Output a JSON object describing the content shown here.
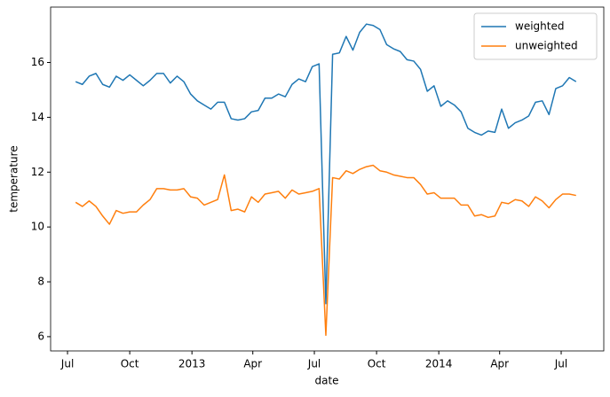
{
  "chart_data": {
    "type": "line",
    "xlabel": "date",
    "ylabel": "temperature",
    "x": [
      "2012-07-13",
      "2012-07-23",
      "2012-08-02",
      "2012-08-12",
      "2012-08-22",
      "2012-09-01",
      "2012-09-11",
      "2012-09-21",
      "2012-10-01",
      "2012-10-11",
      "2012-10-21",
      "2012-10-31",
      "2012-11-10",
      "2012-11-20",
      "2012-11-30",
      "2012-12-10",
      "2012-12-20",
      "2012-12-30",
      "2013-01-09",
      "2013-01-19",
      "2013-01-29",
      "2013-02-08",
      "2013-02-18",
      "2013-02-28",
      "2013-03-10",
      "2013-03-20",
      "2013-03-30",
      "2013-04-09",
      "2013-04-19",
      "2013-04-29",
      "2013-05-09",
      "2013-05-19",
      "2013-05-29",
      "2013-06-08",
      "2013-06-18",
      "2013-06-28",
      "2013-07-08",
      "2013-07-18",
      "2013-07-28",
      "2013-08-07",
      "2013-08-17",
      "2013-08-27",
      "2013-09-06",
      "2013-09-16",
      "2013-09-26",
      "2013-10-06",
      "2013-10-16",
      "2013-10-26",
      "2013-11-05",
      "2013-11-15",
      "2013-11-25",
      "2013-12-05",
      "2013-12-15",
      "2013-12-25",
      "2014-01-04",
      "2014-01-14",
      "2014-01-24",
      "2014-02-03",
      "2014-02-13",
      "2014-02-23",
      "2014-03-05",
      "2014-03-15",
      "2014-03-25",
      "2014-04-04",
      "2014-04-14",
      "2014-04-24",
      "2014-05-04",
      "2014-05-14",
      "2014-05-24",
      "2014-06-03",
      "2014-06-13",
      "2014-06-23",
      "2014-07-03",
      "2014-07-13",
      "2014-07-23"
    ],
    "series": [
      {
        "name": "weighted",
        "color": "#1f77b4",
        "values": [
          15.3,
          15.2,
          15.5,
          15.6,
          15.2,
          15.1,
          15.5,
          15.35,
          15.55,
          15.35,
          15.15,
          15.35,
          15.6,
          15.6,
          15.25,
          15.5,
          15.3,
          14.85,
          14.6,
          14.45,
          14.3,
          14.55,
          14.55,
          13.95,
          13.9,
          13.95,
          14.2,
          14.25,
          14.7,
          14.7,
          14.85,
          14.75,
          15.2,
          15.4,
          15.3,
          15.85,
          15.95,
          7.2,
          16.3,
          16.35,
          16.95,
          16.45,
          17.1,
          17.4,
          17.35,
          17.2,
          16.65,
          16.5,
          16.4,
          16.1,
          16.05,
          15.75,
          14.95,
          15.15,
          14.4,
          14.6,
          14.45,
          14.2,
          13.6,
          13.45,
          13.35,
          13.5,
          13.45,
          14.3,
          13.6,
          13.8,
          13.9,
          14.05,
          14.55,
          14.6,
          14.1,
          15.05,
          15.15,
          15.45,
          15.3
        ]
      },
      {
        "name": "unweighted",
        "color": "#ff7f0e",
        "values": [
          10.9,
          10.75,
          10.95,
          10.75,
          10.4,
          10.1,
          10.6,
          10.5,
          10.55,
          10.55,
          10.8,
          11.0,
          11.4,
          11.4,
          11.35,
          11.35,
          11.4,
          11.1,
          11.05,
          10.8,
          10.9,
          11.0,
          11.9,
          10.6,
          10.65,
          10.55,
          11.1,
          10.9,
          11.2,
          11.25,
          11.3,
          11.05,
          11.35,
          11.2,
          11.25,
          11.3,
          11.4,
          6.05,
          11.8,
          11.75,
          12.05,
          11.95,
          12.1,
          12.2,
          12.25,
          12.05,
          12.0,
          11.9,
          11.85,
          11.8,
          11.8,
          11.55,
          11.2,
          11.25,
          11.05,
          11.05,
          11.05,
          10.8,
          10.8,
          10.4,
          10.45,
          10.35,
          10.4,
          10.9,
          10.85,
          11.0,
          10.95,
          10.75,
          11.1,
          10.95,
          10.7,
          11.0,
          11.2,
          11.2,
          11.15
        ]
      }
    ],
    "xlim": [
      "2012-06-06",
      "2014-09-02"
    ],
    "xticks": [
      {
        "value": "2012-07-01",
        "label": "Jul"
      },
      {
        "value": "2012-10-01",
        "label": "Oct"
      },
      {
        "value": "2013-01-01",
        "label": "2013"
      },
      {
        "value": "2013-04-01",
        "label": "Apr"
      },
      {
        "value": "2013-07-01",
        "label": "Jul"
      },
      {
        "value": "2013-10-01",
        "label": "Oct"
      },
      {
        "value": "2014-01-01",
        "label": "2014"
      },
      {
        "value": "2014-04-01",
        "label": "Apr"
      },
      {
        "value": "2014-07-01",
        "label": "Jul"
      }
    ],
    "ylim": [
      5.48,
      18.02
    ],
    "yticks": [
      6,
      8,
      10,
      12,
      14,
      16
    ],
    "legend": "upper right"
  }
}
